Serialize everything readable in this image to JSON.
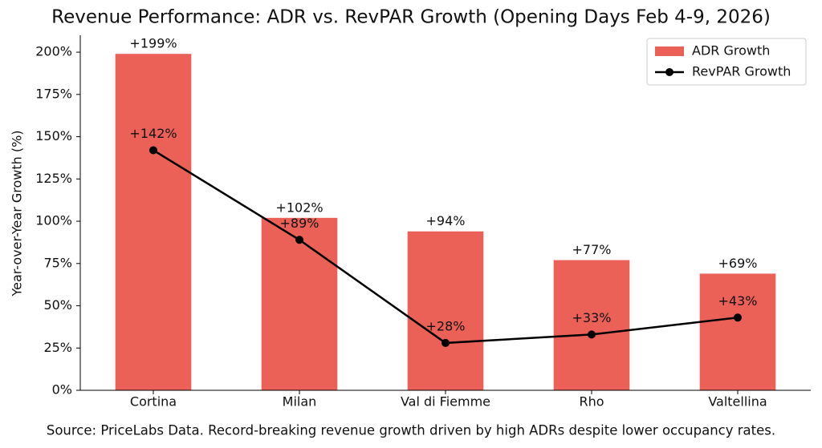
{
  "chart_data": {
    "type": "bar",
    "title": "Revenue Performance: ADR vs. RevPAR Growth (Opening Days Feb 4-9, 2026)",
    "y_label": "Year-over-Year Growth (%)",
    "source": "Source: PriceLabs Data. Record-breaking revenue growth driven by high ADRs despite lower occupancy rates.",
    "categories": [
      "Cortina",
      "Milan",
      "Val di Fiemme",
      "Rho",
      "Valtellina"
    ],
    "series": [
      {
        "name": "ADR Growth",
        "type": "bar",
        "color": "#eb6158",
        "values": [
          199,
          102,
          94,
          77,
          69
        ],
        "value_labels": [
          "+199%",
          "+102%",
          "+94%",
          "+77%",
          "+69%"
        ]
      },
      {
        "name": "RevPAR Growth",
        "type": "line",
        "color": "#000000",
        "values": [
          142,
          89,
          28,
          33,
          43
        ],
        "value_labels": [
          "+142%",
          "+89%",
          "+28%",
          "+33%",
          "+43%"
        ]
      }
    ],
    "ylim": [
      0,
      210
    ],
    "yticks": [
      {
        "value": 0,
        "label": "0%"
      },
      {
        "value": 25,
        "label": "25%"
      },
      {
        "value": 50,
        "label": "50%"
      },
      {
        "value": 75,
        "label": "75%"
      },
      {
        "value": 100,
        "label": "100%"
      },
      {
        "value": 125,
        "label": "125%"
      },
      {
        "value": 150,
        "label": "150%"
      },
      {
        "value": 175,
        "label": "175%"
      },
      {
        "value": 200,
        "label": "200%"
      }
    ],
    "grid": false,
    "legend": "upper right"
  }
}
